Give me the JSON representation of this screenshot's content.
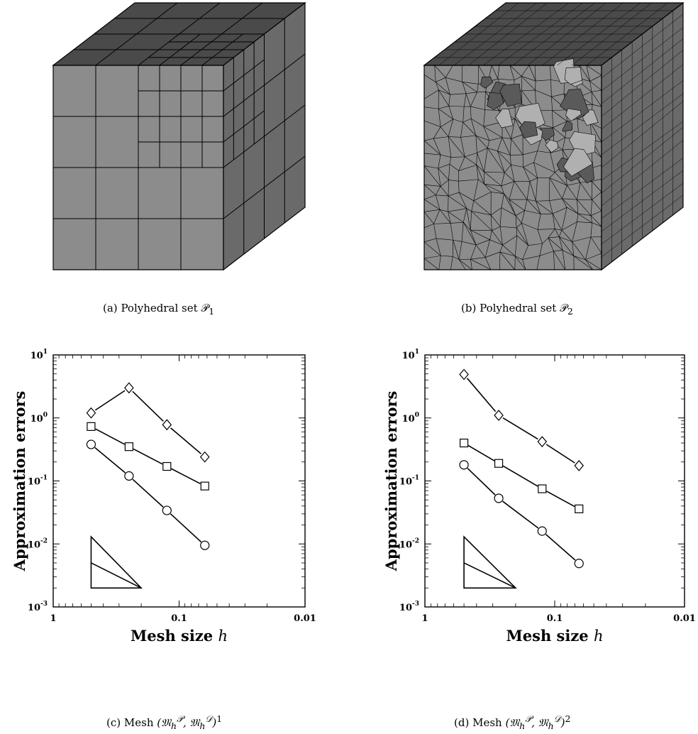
{
  "figures": [
    {
      "label": "(a)",
      "caption": "Polyhedral set",
      "symbol": "𝒫",
      "sub": "1"
    },
    {
      "label": "(b)",
      "caption": "Polyhedral set",
      "symbol": "𝒫",
      "sub": "2"
    },
    {
      "label": "(c)",
      "caption": "Mesh",
      "math": "(𝔐",
      "sup": "1"
    },
    {
      "label": "(d)",
      "caption": "Mesh",
      "math": "(𝔐",
      "sup": "2"
    }
  ],
  "colors": {
    "cube_face": "#8c8c8c",
    "cube_top": "#4a4a4a",
    "cube_side": "#6a6a6a",
    "edge": "#000000"
  },
  "chart_data": [
    {
      "type": "line",
      "xlabel": "Mesh size h",
      "ylabel": "Approximation errors",
      "x_scale": "log",
      "x_reversed": true,
      "xlim": [
        1,
        0.01
      ],
      "y_scale": "log",
      "ylim": [
        0.001,
        10
      ],
      "x_ticks": [
        "1",
        "0.1",
        "0.01"
      ],
      "y_ticks": [
        "10^-3",
        "10^-2",
        "10^-1",
        "10^0",
        "10^1"
      ],
      "series": [
        {
          "marker": "diamond",
          "x": [
            0.5,
            0.25,
            0.125,
            0.0625
          ],
          "y": [
            1.2,
            3.0,
            0.78,
            0.24
          ]
        },
        {
          "marker": "square",
          "x": [
            0.5,
            0.25,
            0.125,
            0.0625
          ],
          "y": [
            0.73,
            0.35,
            0.17,
            0.083
          ]
        },
        {
          "marker": "circle",
          "x": [
            0.5,
            0.25,
            0.125,
            0.0625
          ],
          "y": [
            0.38,
            0.12,
            0.034,
            0.0095
          ]
        }
      ],
      "slope_triangle": {
        "x": [
          0.5,
          0.2
        ],
        "y": [
          0.002,
          0.013
        ],
        "mid_y": 0.005
      }
    },
    {
      "type": "line",
      "xlabel": "Mesh size h",
      "ylabel": "Approximation errors",
      "x_scale": "log",
      "x_reversed": true,
      "xlim": [
        1,
        0.01
      ],
      "y_scale": "log",
      "ylim": [
        0.001,
        10
      ],
      "x_ticks": [
        "1",
        "0.1",
        "0.01"
      ],
      "y_ticks": [
        "10^-3",
        "10^-2",
        "10^-1",
        "10^0",
        "10^1"
      ],
      "series": [
        {
          "marker": "diamond",
          "x": [
            0.5,
            0.27,
            0.125,
            0.065
          ],
          "y": [
            4.9,
            1.1,
            0.42,
            0.175
          ]
        },
        {
          "marker": "square",
          "x": [
            0.5,
            0.27,
            0.125,
            0.065
          ],
          "y": [
            0.4,
            0.19,
            0.075,
            0.036
          ]
        },
        {
          "marker": "circle",
          "x": [
            0.5,
            0.27,
            0.125,
            0.065
          ],
          "y": [
            0.18,
            0.053,
            0.016,
            0.0049
          ]
        }
      ],
      "slope_triangle": {
        "x": [
          0.5,
          0.2
        ],
        "y": [
          0.002,
          0.013
        ],
        "mid_y": 0.005
      }
    }
  ]
}
